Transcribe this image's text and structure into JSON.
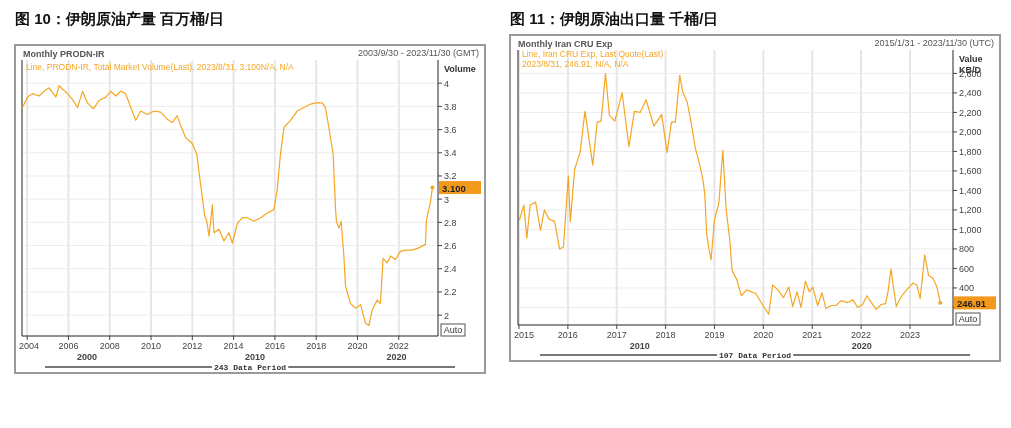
{
  "chart_data": [
    {
      "type": "line",
      "title": "图 10：伊朗原油产量 百万桶/日",
      "subtitle": "Monthly PRODN-IR",
      "ylabel": "Volume",
      "annotations": [
        "2003/9/30 - 2023/11/30 (GMT)",
        "Line, PRODN-IR, Total Market Volume(Last), 2023/8/31, 3.100N/A, N/A",
        "Auto",
        "243 Data Period",
        "2000",
        "2010",
        "2020",
        {
          "text": "3.100",
          "x": 2023.63,
          "y": 3.1
        }
      ],
      "xlim": [
        2003.75,
        2023.9
      ],
      "xticks": [
        2004,
        2006,
        2008,
        2010,
        2012,
        2014,
        2016,
        2018,
        2020,
        2022
      ],
      "ylim": [
        1.82,
        4.2
      ],
      "yticks": [
        2,
        2.2,
        2.4,
        2.6,
        2.8,
        3,
        3.2,
        3.4,
        3.6,
        3.8,
        4
      ],
      "grid": true,
      "series": [
        {
          "color": "#f5a623",
          "x": [
            2003.77,
            2004.02,
            2004.26,
            2004.58,
            2004.82,
            2005.06,
            2005.23,
            2005.39,
            2005.55,
            2005.71,
            2005.95,
            2006.19,
            2006.44,
            2006.68,
            2006.92,
            2007.21,
            2007.48,
            2007.81,
            2008.05,
            2008.29,
            2008.53,
            2008.77,
            2009.02,
            2009.26,
            2009.5,
            2009.82,
            2010.15,
            2010.47,
            2010.79,
            2011.03,
            2011.27,
            2011.44,
            2011.68,
            2012.0,
            2012.21,
            2012.4,
            2012.56,
            2012.6,
            2012.69,
            2012.81,
            2012.97,
            2013.05,
            2013.29,
            2013.53,
            2013.77,
            2013.94,
            2014.18,
            2014.42,
            2014.66,
            2014.98,
            2015.31,
            2015.63,
            2015.95,
            2016.11,
            2016.27,
            2016.44,
            2016.76,
            2017.08,
            2017.4,
            2017.73,
            2017.97,
            2018.29,
            2018.45,
            2018.61,
            2018.82,
            2018.94,
            2018.98,
            2019.1,
            2019.21,
            2019.34,
            2019.42,
            2019.66,
            2019.9,
            2020.15,
            2020.39,
            2020.55,
            2020.71,
            2020.95,
            2021.11,
            2021.24,
            2021.44,
            2021.6,
            2021.84,
            2022.08,
            2022.32,
            2022.65,
            2022.97,
            2023.29,
            2023.34,
            2023.45,
            2023.53,
            2023.63
          ],
          "values": [
            3.79,
            3.88,
            3.91,
            3.89,
            3.93,
            3.96,
            3.92,
            3.88,
            3.98,
            3.95,
            3.91,
            3.86,
            3.79,
            3.93,
            3.83,
            3.78,
            3.85,
            3.88,
            3.93,
            3.89,
            3.93,
            3.91,
            3.79,
            3.68,
            3.76,
            3.73,
            3.76,
            3.75,
            3.69,
            3.66,
            3.72,
            3.63,
            3.53,
            3.48,
            3.39,
            3.13,
            2.91,
            2.85,
            2.82,
            2.68,
            2.95,
            2.71,
            2.74,
            2.64,
            2.71,
            2.62,
            2.79,
            2.84,
            2.84,
            2.81,
            2.84,
            2.88,
            2.91,
            3.08,
            3.39,
            3.62,
            3.68,
            3.76,
            3.79,
            3.82,
            3.83,
            3.83,
            3.79,
            3.62,
            3.39,
            2.91,
            2.81,
            2.75,
            2.81,
            2.51,
            2.25,
            2.1,
            2.06,
            2.09,
            1.93,
            1.91,
            2.04,
            2.13,
            2.1,
            2.49,
            2.45,
            2.51,
            2.48,
            2.55,
            2.56,
            2.56,
            2.58,
            2.61,
            2.82,
            2.91,
            2.97,
            3.1
          ]
        }
      ]
    },
    {
      "type": "line",
      "title": "图 11：伊朗原油出口量 千桶/日",
      "subtitle": "Monthly Iran CRU Exp",
      "ylabel": "Value KB/D",
      "annotations": [
        "2015/1/31 - 2023/11/30 (UTC)",
        "Line, Iran CRU Exp, Last Quote(Last) 2023/8/31, 246.91, N/A, N/A",
        "Auto",
        "107 Data Period",
        "2010",
        "2020",
        {
          "text": "246.91",
          "x": 2023.62,
          "y": 246.91
        }
      ],
      "xlim": [
        2014.98,
        2023.88
      ],
      "xticks": [
        2015,
        2016,
        2017,
        2018,
        2019,
        2020,
        2021,
        2022,
        2023
      ],
      "ylim": [
        20,
        2840
      ],
      "yticks": [
        {
          "value": 200,
          "label": null
        },
        {
          "value": 400,
          "label": "400"
        },
        {
          "value": 600,
          "label": "600"
        },
        {
          "value": 800,
          "label": "800"
        },
        {
          "value": 1000,
          "label": "1,000"
        },
        {
          "value": 1200,
          "label": "1,200"
        },
        {
          "value": 1400,
          "label": "1,400"
        },
        {
          "value": 1600,
          "label": "1,600"
        },
        {
          "value": 1800,
          "label": "1,800"
        },
        {
          "value": 2000,
          "label": "2,000"
        },
        {
          "value": 2200,
          "label": "2,200"
        },
        {
          "value": 2400,
          "label": "2,400"
        },
        {
          "value": 2600,
          "label": "2,600"
        }
      ],
      "grid": true,
      "series": [
        {
          "color": "#f5a623",
          "x": [
            2015.01,
            2015.1,
            2015.16,
            2015.23,
            2015.34,
            2015.44,
            2015.52,
            2015.61,
            2015.73,
            2015.83,
            2015.91,
            2016.01,
            2016.05,
            2016.14,
            2016.25,
            2016.35,
            2016.51,
            2016.6,
            2016.68,
            2016.77,
            2016.85,
            2016.96,
            2017.11,
            2017.25,
            2017.36,
            2017.48,
            2017.6,
            2017.76,
            2017.92,
            2018.03,
            2018.12,
            2018.2,
            2018.29,
            2018.35,
            2018.44,
            2018.52,
            2018.61,
            2018.68,
            2018.76,
            2018.8,
            2018.84,
            2018.89,
            2018.93,
            2019.0,
            2019.09,
            2019.17,
            2019.24,
            2019.31,
            2019.36,
            2019.46,
            2019.55,
            2019.66,
            2019.85,
            2019.99,
            2020.11,
            2020.19,
            2020.3,
            2020.41,
            2020.52,
            2020.6,
            2020.69,
            2020.77,
            2020.86,
            2020.94,
            2021.01,
            2021.11,
            2021.2,
            2021.28,
            2021.39,
            2021.49,
            2021.59,
            2021.73,
            2021.83,
            2021.93,
            2022.03,
            2022.12,
            2022.21,
            2022.31,
            2022.41,
            2022.5,
            2022.55,
            2022.61,
            2022.72,
            2022.82,
            2022.93,
            2023.06,
            2023.14,
            2023.21,
            2023.3,
            2023.38,
            2023.47,
            2023.55,
            2023.62
          ],
          "values": [
            1100,
            1250,
            910,
            1250,
            1280,
            990,
            1200,
            1110,
            1080,
            800,
            820,
            1550,
            1080,
            1620,
            1790,
            2210,
            1660,
            2100,
            2110,
            2600,
            2170,
            2110,
            2400,
            1850,
            2210,
            2200,
            2330,
            2060,
            2180,
            1790,
            2100,
            2100,
            2580,
            2410,
            2310,
            2100,
            1830,
            1700,
            1520,
            1370,
            960,
            790,
            690,
            1100,
            1270,
            1810,
            1200,
            910,
            580,
            480,
            320,
            380,
            340,
            220,
            130,
            430,
            380,
            300,
            410,
            210,
            360,
            200,
            470,
            360,
            410,
            220,
            350,
            190,
            220,
            220,
            270,
            250,
            280,
            200,
            230,
            320,
            250,
            180,
            230,
            240,
            360,
            590,
            210,
            310,
            380,
            450,
            430,
            290,
            740,
            530,
            500,
            410,
            246.91
          ]
        }
      ]
    }
  ]
}
